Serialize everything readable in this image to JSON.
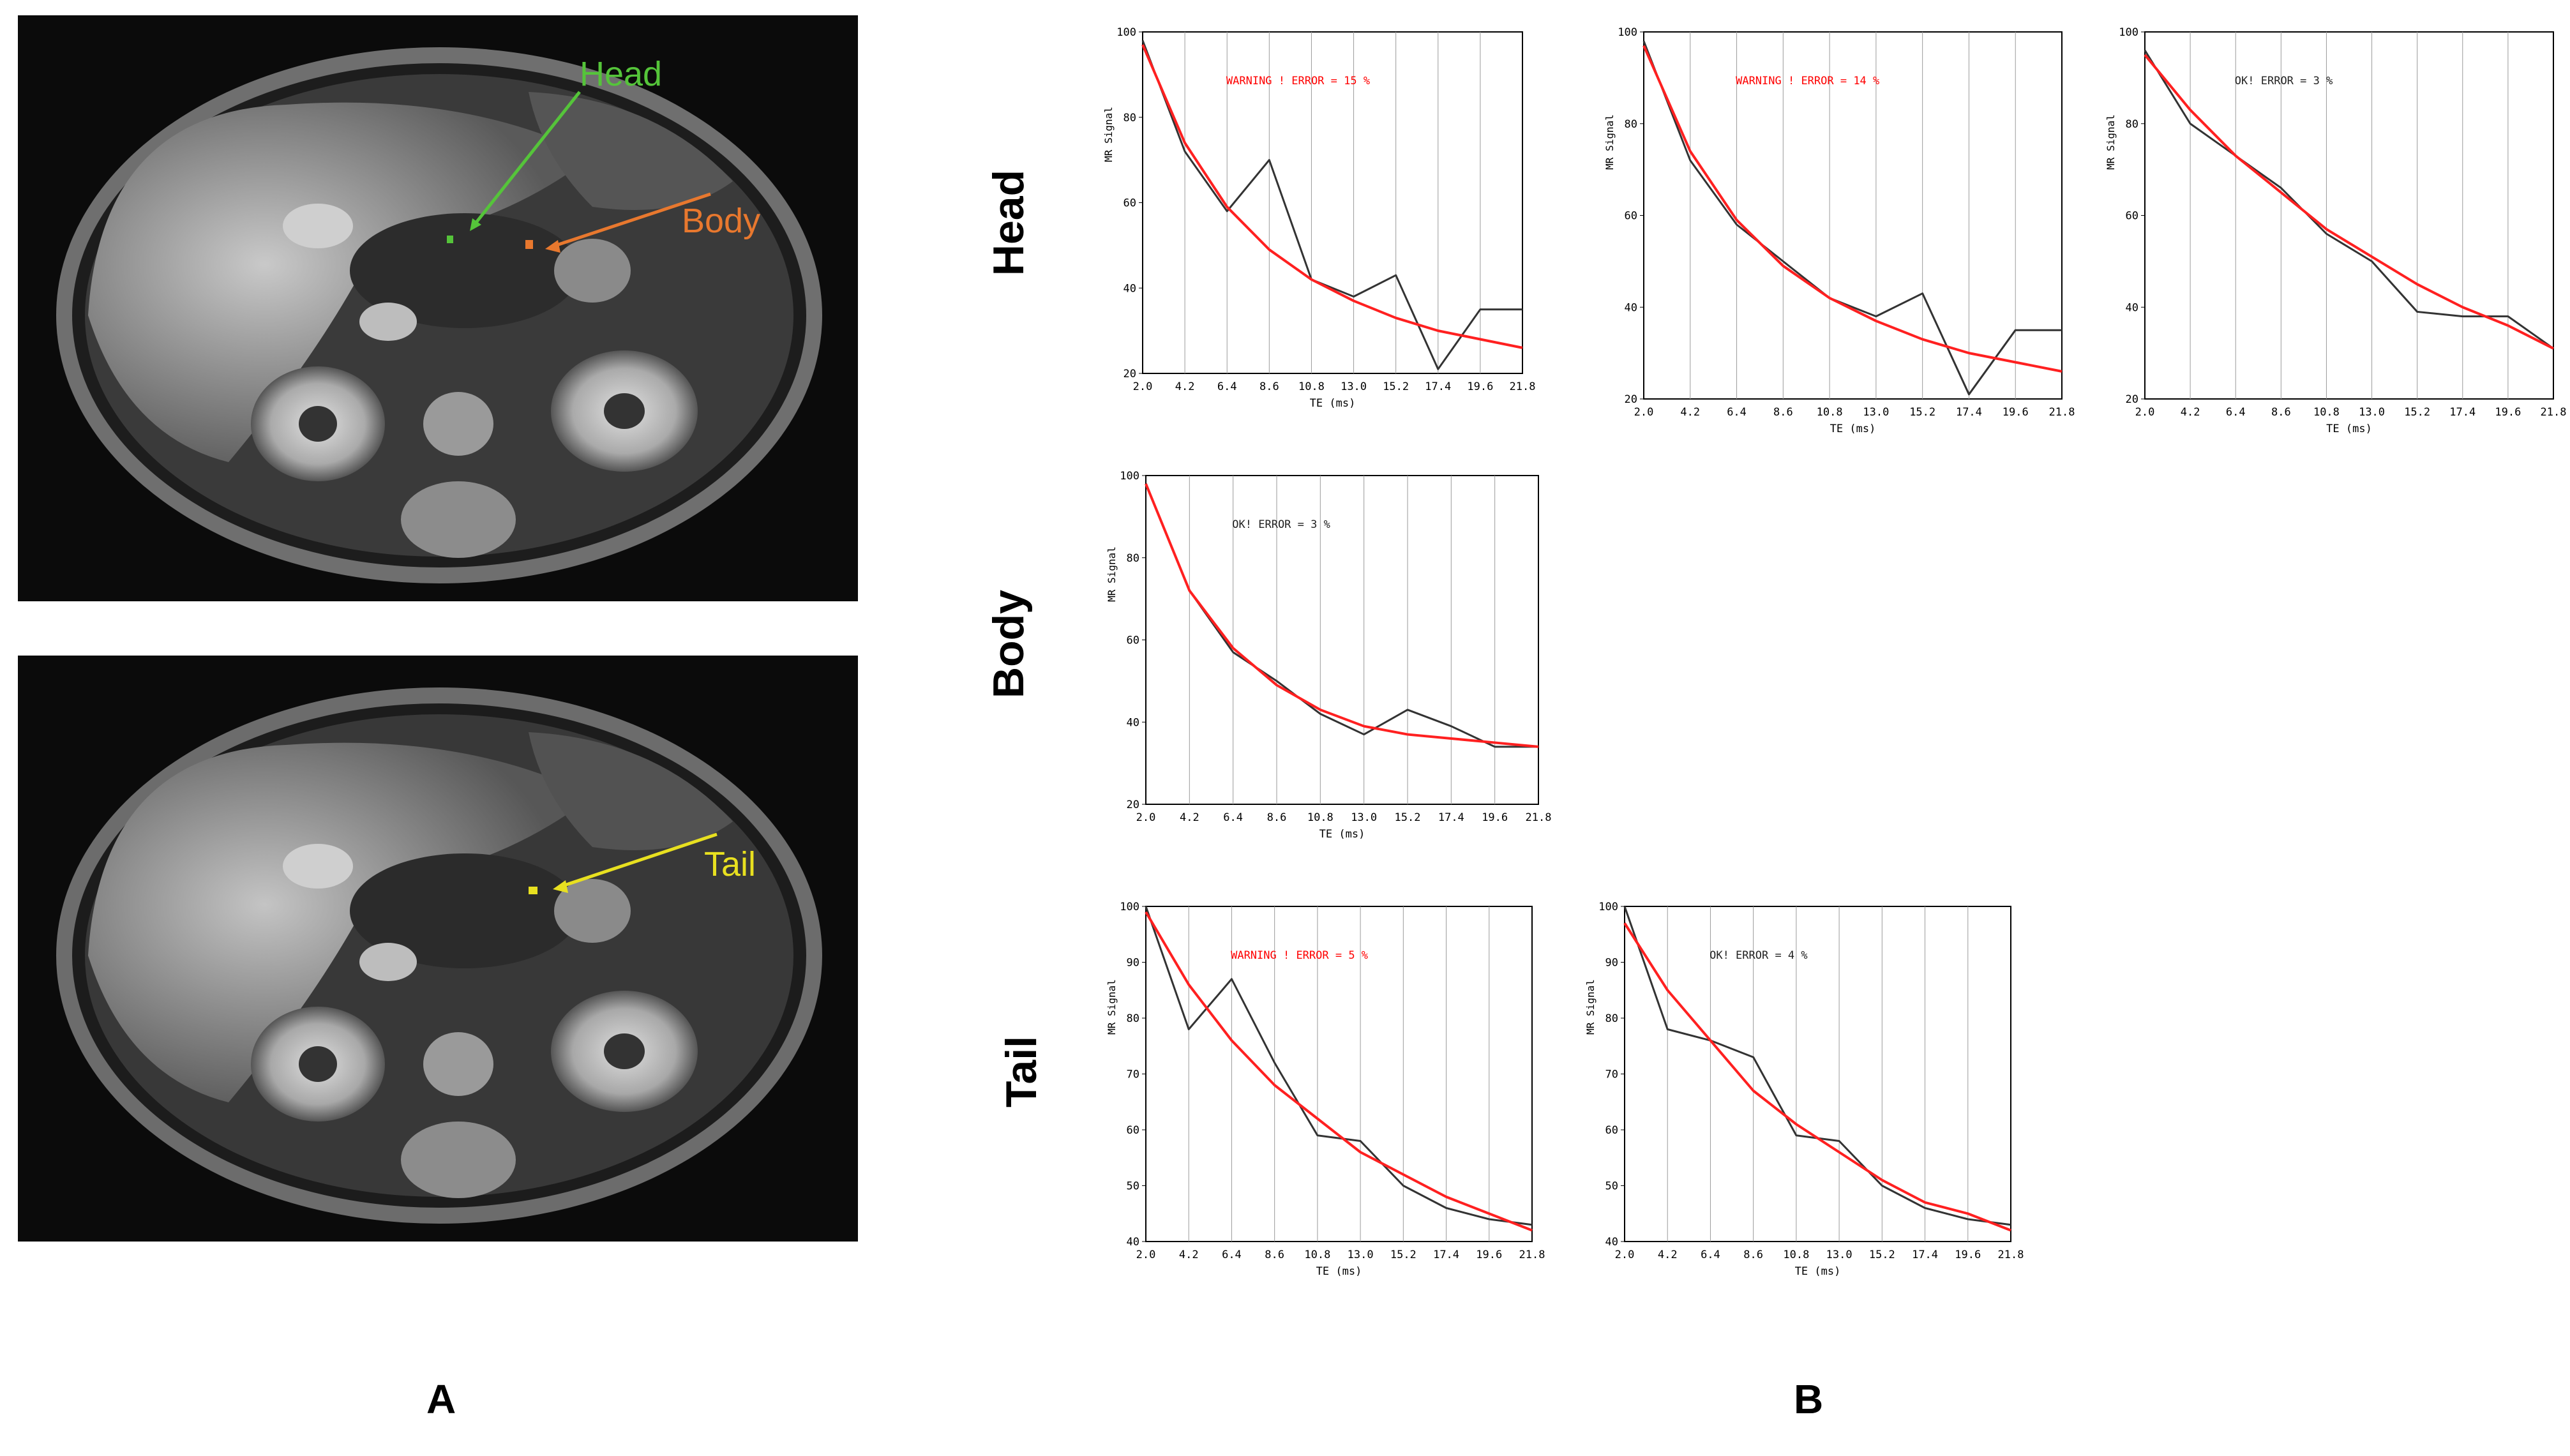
{
  "panels": {
    "a_label": "A",
    "b_label": "B"
  },
  "rows": {
    "head": "Head",
    "body": "Body",
    "tail": "Tail"
  },
  "mri_labels": {
    "head": "Head",
    "body": "Body",
    "tail": "Tail"
  },
  "colors": {
    "head_marker": "#55c43a",
    "body_marker": "#e8782e",
    "tail_marker": "#e8e020",
    "fit_line": "#ff2020",
    "data_line": "#333333",
    "warning_text": "#ff0000",
    "ok_text": "#222222"
  },
  "chart_data": [
    {
      "id": "head-1",
      "type": "line",
      "xlabel": "TE (ms)",
      "ylabel": "MR Signal",
      "categories": [
        "2.0",
        "4.2",
        "6.4",
        "8.6",
        "10.8",
        "13.0",
        "15.2",
        "17.4",
        "19.6",
        "21.8"
      ],
      "ylim": [
        20,
        100
      ],
      "yticks": [
        20,
        40,
        60,
        80,
        100
      ],
      "annotation": "WARNING ! ERROR = 15 %",
      "status": "warning",
      "series": [
        {
          "name": "measured",
          "values": [
            98,
            72,
            58,
            70,
            42,
            38,
            43,
            21,
            35,
            35
          ]
        },
        {
          "name": "fit",
          "values": [
            97,
            74,
            59,
            49,
            42,
            37,
            33,
            30,
            28,
            26
          ]
        }
      ]
    },
    {
      "id": "head-2",
      "type": "line",
      "xlabel": "TE (ms)",
      "ylabel": "MR Signal",
      "categories": [
        "2.0",
        "4.2",
        "6.4",
        "8.6",
        "10.8",
        "13.0",
        "15.2",
        "17.4",
        "19.6",
        "21.8"
      ],
      "ylim": [
        20,
        100
      ],
      "yticks": [
        20,
        40,
        60,
        80,
        100
      ],
      "annotation": "WARNING ! ERROR = 14 %",
      "status": "warning",
      "series": [
        {
          "name": "measured",
          "values": [
            98,
            72,
            58,
            50,
            42,
            38,
            43,
            21,
            35,
            35
          ]
        },
        {
          "name": "fit",
          "values": [
            97,
            74,
            59,
            49,
            42,
            37,
            33,
            30,
            28,
            26
          ]
        }
      ]
    },
    {
      "id": "head-3",
      "type": "line",
      "xlabel": "TE (ms)",
      "ylabel": "MR Signal",
      "categories": [
        "2.0",
        "4.2",
        "6.4",
        "8.6",
        "10.8",
        "13.0",
        "15.2",
        "17.4",
        "19.6",
        "21.8"
      ],
      "ylim": [
        20,
        100
      ],
      "yticks": [
        20,
        40,
        60,
        80,
        100
      ],
      "annotation": "OK! ERROR = 3 %",
      "status": "ok",
      "series": [
        {
          "name": "measured",
          "values": [
            96,
            80,
            73,
            66,
            56,
            50,
            39,
            38,
            38,
            31
          ]
        },
        {
          "name": "fit",
          "values": [
            95,
            83,
            73,
            65,
            57,
            51,
            45,
            40,
            36,
            31
          ]
        }
      ]
    },
    {
      "id": "body-1",
      "type": "line",
      "xlabel": "TE (ms)",
      "ylabel": "MR Signal",
      "categories": [
        "2.0",
        "4.2",
        "6.4",
        "8.6",
        "10.8",
        "13.0",
        "15.2",
        "17.4",
        "19.6",
        "21.8"
      ],
      "ylim": [
        20,
        100
      ],
      "yticks": [
        20,
        40,
        60,
        80,
        100
      ],
      "annotation": "OK! ERROR = 3 %",
      "status": "ok",
      "series": [
        {
          "name": "measured",
          "values": [
            98,
            72,
            57,
            50,
            42,
            37,
            43,
            39,
            34,
            34
          ]
        },
        {
          "name": "fit",
          "values": [
            98,
            72,
            58,
            49,
            43,
            39,
            37,
            36,
            35,
            34
          ]
        }
      ]
    },
    {
      "id": "tail-1",
      "type": "line",
      "xlabel": "TE (ms)",
      "ylabel": "MR Signal",
      "categories": [
        "2.0",
        "4.2",
        "6.4",
        "8.6",
        "10.8",
        "13.0",
        "15.2",
        "17.4",
        "19.6",
        "21.8"
      ],
      "ylim": [
        40,
        100
      ],
      "yticks": [
        40,
        50,
        60,
        70,
        80,
        90,
        100
      ],
      "annotation": "WARNING ! ERROR = 5 %",
      "status": "warning",
      "series": [
        {
          "name": "measured",
          "values": [
            100,
            78,
            87,
            72,
            59,
            58,
            50,
            46,
            44,
            43
          ]
        },
        {
          "name": "fit",
          "values": [
            99,
            86,
            76,
            68,
            62,
            56,
            52,
            48,
            45,
            42
          ]
        }
      ]
    },
    {
      "id": "tail-2",
      "type": "line",
      "xlabel": "TE (ms)",
      "ylabel": "MR Signal",
      "categories": [
        "2.0",
        "4.2",
        "6.4",
        "8.6",
        "10.8",
        "13.0",
        "15.2",
        "17.4",
        "19.6",
        "21.8"
      ],
      "ylim": [
        40,
        100
      ],
      "yticks": [
        40,
        50,
        60,
        70,
        80,
        90,
        100
      ],
      "annotation": "OK! ERROR = 4 %",
      "status": "ok",
      "series": [
        {
          "name": "measured",
          "values": [
            100,
            78,
            76,
            73,
            59,
            58,
            50,
            46,
            44,
            43
          ]
        },
        {
          "name": "fit",
          "values": [
            97,
            85,
            76,
            67,
            61,
            56,
            51,
            47,
            45,
            42
          ]
        }
      ]
    }
  ]
}
